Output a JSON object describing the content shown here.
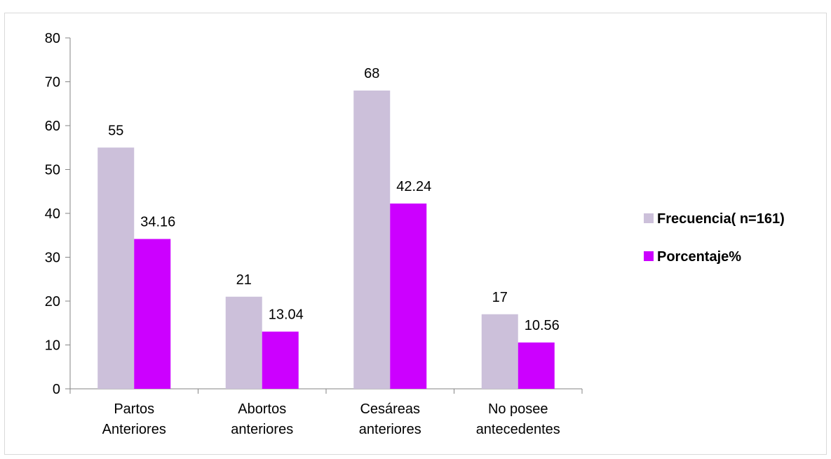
{
  "chart_data": {
    "type": "bar",
    "categories": [
      [
        "Partos",
        "Anteriores"
      ],
      [
        "Abortos",
        "anteriores"
      ],
      [
        "Cesáreas",
        "anteriores"
      ],
      [
        "No posee",
        "antecedentes"
      ]
    ],
    "series": [
      {
        "name": "Frecuencia( n=161)",
        "values": [
          55,
          21,
          68,
          17
        ],
        "labels": [
          "55",
          "21",
          "68",
          "17"
        ],
        "color": "#ccc0da"
      },
      {
        "name": "Porcentaje%",
        "values": [
          34.16,
          13.04,
          42.24,
          10.56
        ],
        "labels": [
          "34.16",
          "13.04",
          "42.24",
          "10.56"
        ],
        "color": "#cc00ff"
      }
    ],
    "ylim": [
      0,
      80
    ],
    "yticks": [
      0,
      10,
      20,
      30,
      40,
      50,
      60,
      70,
      80
    ],
    "ytick_labels": [
      "0",
      "10",
      "20",
      "30",
      "40",
      "50",
      "60",
      "70",
      "80"
    ],
    "legend_position": "right",
    "grid": false,
    "axis_color": "#868686"
  }
}
